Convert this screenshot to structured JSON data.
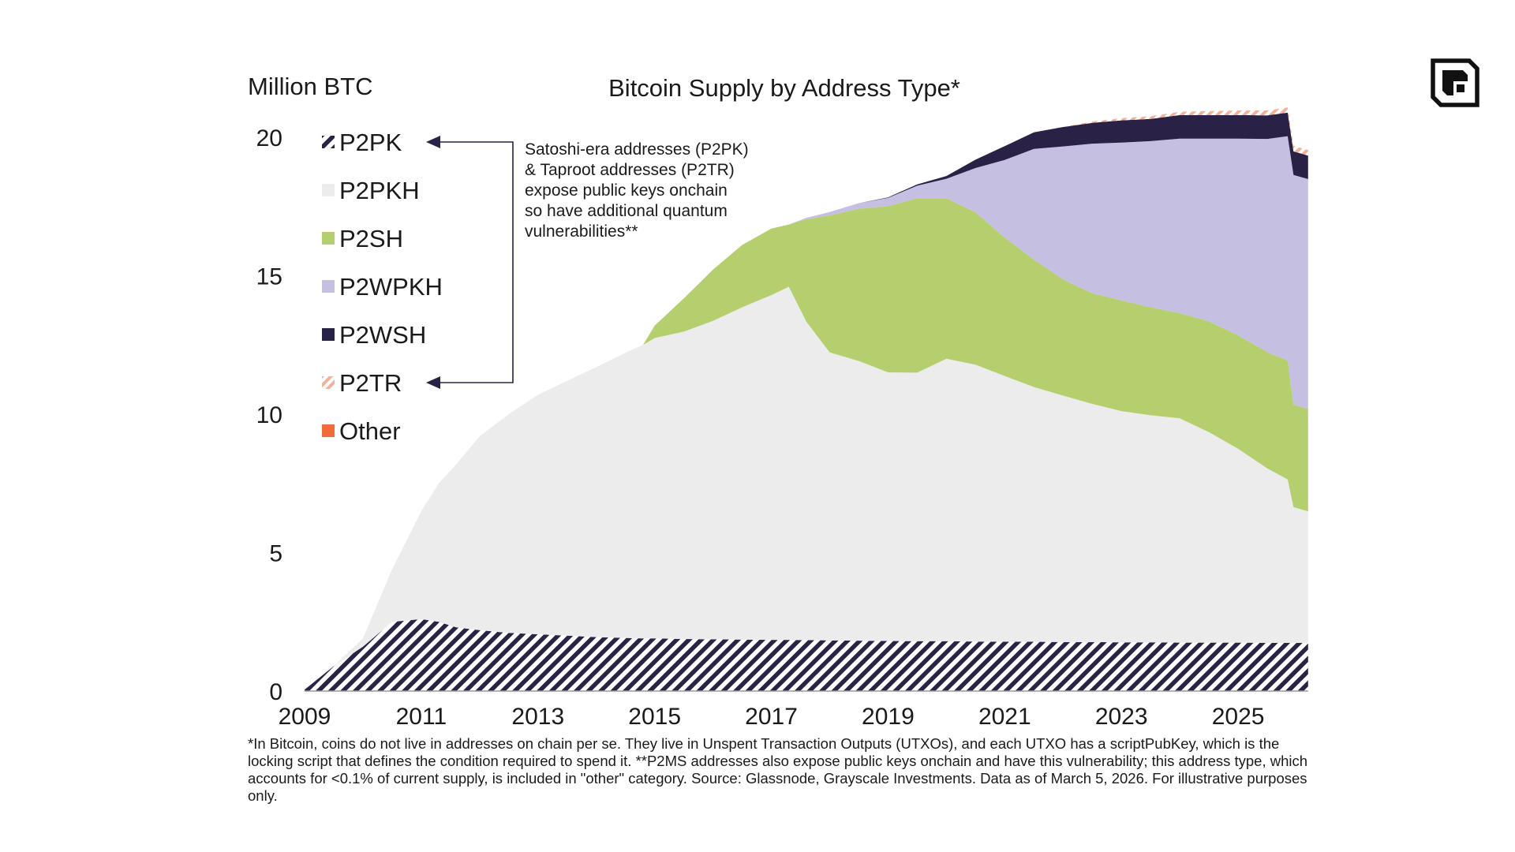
{
  "chart_data": {
    "type": "area",
    "stacked": true,
    "title": "Bitcoin Supply by Address Type*",
    "ylabel": "Million BTC",
    "xlabel": "",
    "xlim": [
      2009,
      2026.5
    ],
    "ylim": [
      0,
      20
    ],
    "x_ticks": [
      2009,
      2011,
      2013,
      2015,
      2017,
      2019,
      2021,
      2023,
      2025
    ],
    "y_ticks": [
      0,
      5,
      10,
      15,
      20
    ],
    "grid": false,
    "legend_position": "top-left",
    "x": [
      2009.0,
      2009.5,
      2010.0,
      2010.5,
      2011.0,
      2011.3,
      2011.6,
      2012.0,
      2012.5,
      2013.0,
      2013.5,
      2014.0,
      2014.5,
      2014.8,
      2015.0,
      2015.5,
      2016.0,
      2016.5,
      2017.0,
      2017.3,
      2017.6,
      2018.0,
      2018.5,
      2019.0,
      2019.5,
      2020.0,
      2020.5,
      2021.0,
      2021.5,
      2022.0,
      2022.5,
      2023.0,
      2023.5,
      2024.0,
      2024.5,
      2025.0,
      2025.5,
      2025.85,
      2025.95,
      2026.2
    ],
    "series": [
      {
        "name": "P2PK",
        "color": "#2b2346",
        "pattern": "hatch",
        "values": [
          0.05,
          0.9,
          1.6,
          2.5,
          2.6,
          2.5,
          2.3,
          2.2,
          2.1,
          2.05,
          2.0,
          1.95,
          1.92,
          1.9,
          1.9,
          1.88,
          1.87,
          1.86,
          1.85,
          1.85,
          1.84,
          1.83,
          1.82,
          1.81,
          1.8,
          1.8,
          1.79,
          1.78,
          1.78,
          1.77,
          1.77,
          1.76,
          1.76,
          1.75,
          1.75,
          1.75,
          1.74,
          1.74,
          1.74,
          1.74
        ]
      },
      {
        "name": "P2PKH",
        "color": "#ececec",
        "values": [
          0.0,
          0.0,
          0.3,
          1.9,
          3.9,
          5.0,
          5.9,
          7.0,
          7.9,
          8.65,
          9.2,
          9.75,
          10.3,
          10.6,
          10.85,
          11.1,
          11.5,
          12.0,
          12.45,
          12.75,
          11.5,
          10.4,
          10.1,
          9.7,
          9.7,
          10.2,
          10.0,
          9.6,
          9.2,
          8.9,
          8.6,
          8.35,
          8.2,
          8.1,
          7.6,
          7.0,
          6.3,
          5.9,
          4.9,
          4.75
        ]
      },
      {
        "name": "P2SH",
        "color": "#b5cf6e",
        "values": [
          0,
          0,
          0,
          0,
          0,
          0,
          0,
          0,
          0,
          0,
          0,
          0,
          0,
          0,
          0.45,
          1.2,
          1.85,
          2.25,
          2.4,
          2.25,
          3.7,
          4.95,
          5.5,
          6.0,
          6.3,
          5.8,
          5.5,
          5.0,
          4.6,
          4.2,
          4.0,
          4.0,
          3.9,
          3.8,
          4.0,
          4.1,
          4.2,
          4.3,
          3.7,
          3.7
        ]
      },
      {
        "name": "P2WPKH",
        "color": "#c5bfe2",
        "values": [
          0,
          0,
          0,
          0,
          0,
          0,
          0,
          0,
          0,
          0,
          0,
          0,
          0,
          0,
          0,
          0,
          0,
          0,
          0,
          0,
          0.05,
          0.12,
          0.2,
          0.3,
          0.45,
          0.7,
          1.6,
          2.8,
          4.0,
          4.8,
          5.4,
          5.7,
          6.0,
          6.3,
          6.6,
          7.1,
          7.7,
          8.1,
          8.3,
          8.3
        ]
      },
      {
        "name": "P2WSH",
        "color": "#2a2146",
        "values": [
          0,
          0,
          0,
          0,
          0,
          0,
          0,
          0,
          0,
          0,
          0,
          0,
          0,
          0,
          0,
          0,
          0,
          0,
          0,
          0,
          0,
          0,
          0,
          0.02,
          0.05,
          0.1,
          0.3,
          0.5,
          0.6,
          0.7,
          0.75,
          0.8,
          0.8,
          0.85,
          0.85,
          0.85,
          0.85,
          0.85,
          0.85,
          0.85
        ]
      },
      {
        "name": "P2TR",
        "color": "#f2b29a",
        "pattern": "hatch",
        "values": [
          0,
          0,
          0,
          0,
          0,
          0,
          0,
          0,
          0,
          0,
          0,
          0,
          0,
          0,
          0,
          0,
          0,
          0,
          0,
          0,
          0,
          0,
          0,
          0,
          0,
          0,
          0,
          0,
          0,
          0,
          0.05,
          0.08,
          0.1,
          0.12,
          0.15,
          0.17,
          0.18,
          0.19,
          0.2,
          0.2
        ]
      },
      {
        "name": "Other",
        "color": "#f26a3b",
        "values": [
          0,
          0,
          0,
          0,
          0,
          0,
          0,
          0,
          0,
          0,
          0,
          0,
          0,
          0,
          0,
          0,
          0,
          0,
          0,
          0,
          0,
          0,
          0,
          0,
          0,
          0,
          0,
          0,
          0,
          0,
          0,
          0,
          0,
          0,
          0,
          0,
          0,
          0,
          0,
          0
        ]
      }
    ],
    "annotation": [
      "Satoshi-era addresses (P2PK)",
      "& Taproot addresses (P2TR)",
      "expose public keys onchain",
      "so have additional quantum",
      "vulnerabilities**"
    ],
    "annotation_targets": [
      "P2PK",
      "P2TR"
    ]
  },
  "footnote": "*In Bitcoin, coins do not live in addresses on chain per se. They live in Unspent Transaction Outputs (UTXOs), and each UTXO has a scriptPubKey, which is the locking script that defines the condition required to spend it. **P2MS addresses also expose public keys onchain and have this vulnerability; this address type, which accounts for <0.1% of current supply, is included in \"other\" category. Source: Glassnode, Grayscale Investments. Data as of March 5, 2026. For illustrative purposes only.",
  "logo": {
    "name": "grayscale-logo",
    "color": "#111111"
  }
}
